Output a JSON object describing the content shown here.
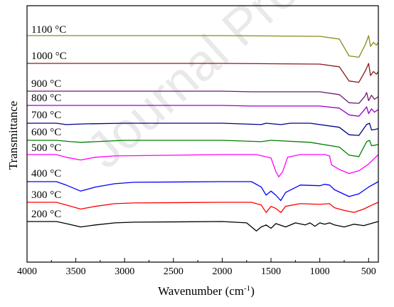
{
  "watermark": "Journal Pre",
  "chart_data": {
    "type": "line",
    "xlabel": "Wavenumber (cm",
    "xlabel_sup": "-1",
    "xlabel_close": ")",
    "ylabel": "Transmittance",
    "xlim": [
      4000,
      400
    ],
    "x_reversed": true,
    "x_ticks": [
      4000,
      3500,
      3000,
      2500,
      2000,
      1500,
      1000,
      500
    ],
    "y_ticks_shown": false,
    "grid": false,
    "legend": "inline labels at left of each curve",
    "series": [
      {
        "name": "200 °C",
        "color": "#000000",
        "points": [
          [
            4000,
            0.0
          ],
          [
            3700,
            0.0
          ],
          [
            3600,
            -0.03
          ],
          [
            3450,
            -0.08
          ],
          [
            3300,
            -0.05
          ],
          [
            3100,
            -0.02
          ],
          [
            2900,
            -0.01
          ],
          [
            2000,
            0.0
          ],
          [
            1750,
            -0.02
          ],
          [
            1650,
            -0.14
          ],
          [
            1600,
            -0.08
          ],
          [
            1550,
            -0.05
          ],
          [
            1500,
            -0.1
          ],
          [
            1450,
            -0.03
          ],
          [
            1350,
            -0.08
          ],
          [
            1250,
            -0.02
          ],
          [
            1150,
            -0.05
          ],
          [
            1100,
            -0.02
          ],
          [
            1050,
            -0.07
          ],
          [
            1000,
            -0.02
          ],
          [
            950,
            -0.04
          ],
          [
            900,
            -0.02
          ],
          [
            850,
            -0.05
          ],
          [
            750,
            -0.08
          ],
          [
            650,
            -0.04
          ],
          [
            550,
            -0.06
          ],
          [
            450,
            -0.02
          ],
          [
            400,
            0.0
          ]
        ]
      },
      {
        "name": "300 °C",
        "color": "#ff0000",
        "points": [
          [
            4000,
            0.0
          ],
          [
            3700,
            0.0
          ],
          [
            3600,
            -0.04
          ],
          [
            3450,
            -0.1
          ],
          [
            3300,
            -0.06
          ],
          [
            3100,
            -0.02
          ],
          [
            2900,
            -0.01
          ],
          [
            2000,
            0.0
          ],
          [
            1700,
            0.0
          ],
          [
            1600,
            -0.04
          ],
          [
            1550,
            -0.15
          ],
          [
            1500,
            -0.06
          ],
          [
            1450,
            -0.09
          ],
          [
            1400,
            -0.15
          ],
          [
            1350,
            -0.06
          ],
          [
            1200,
            -0.02
          ],
          [
            1000,
            -0.03
          ],
          [
            900,
            -0.02
          ],
          [
            850,
            -0.08
          ],
          [
            750,
            -0.12
          ],
          [
            650,
            -0.15
          ],
          [
            550,
            -0.1
          ],
          [
            450,
            -0.03
          ],
          [
            400,
            0.0
          ]
        ]
      },
      {
        "name": "400 °C",
        "color": "#0000ff",
        "points": [
          [
            4000,
            0.0
          ],
          [
            3700,
            0.0
          ],
          [
            3600,
            -0.05
          ],
          [
            3450,
            -0.14
          ],
          [
            3300,
            -0.08
          ],
          [
            3100,
            -0.03
          ],
          [
            2900,
            -0.01
          ],
          [
            2000,
            0.0
          ],
          [
            1700,
            0.0
          ],
          [
            1600,
            -0.08
          ],
          [
            1550,
            -0.2
          ],
          [
            1500,
            -0.14
          ],
          [
            1450,
            -0.2
          ],
          [
            1400,
            -0.28
          ],
          [
            1350,
            -0.16
          ],
          [
            1200,
            -0.05
          ],
          [
            1000,
            -0.06
          ],
          [
            950,
            -0.04
          ],
          [
            900,
            -0.05
          ],
          [
            850,
            -0.12
          ],
          [
            700,
            -0.22
          ],
          [
            600,
            -0.18
          ],
          [
            500,
            -0.08
          ],
          [
            400,
            0.0
          ]
        ]
      },
      {
        "name": "500 °C",
        "color": "#ff00ff",
        "points": [
          [
            4000,
            0.0
          ],
          [
            3700,
            0.0
          ],
          [
            3600,
            -0.04
          ],
          [
            3450,
            -0.08
          ],
          [
            3300,
            -0.04
          ],
          [
            3100,
            -0.02
          ],
          [
            2000,
            0.0
          ],
          [
            1650,
            0.0
          ],
          [
            1500,
            -0.05
          ],
          [
            1450,
            -0.25
          ],
          [
            1420,
            -0.33
          ],
          [
            1380,
            -0.25
          ],
          [
            1330,
            -0.04
          ],
          [
            1200,
            0.0
          ],
          [
            950,
            0.0
          ],
          [
            900,
            -0.02
          ],
          [
            880,
            -0.15
          ],
          [
            800,
            -0.22
          ],
          [
            700,
            -0.28
          ],
          [
            600,
            -0.24
          ],
          [
            500,
            -0.14
          ],
          [
            400,
            0.0
          ]
        ]
      },
      {
        "name": "600 °C",
        "color": "#008000",
        "points": [
          [
            4000,
            0.0
          ],
          [
            3700,
            0.0
          ],
          [
            3550,
            -0.02
          ],
          [
            3450,
            -0.03
          ],
          [
            3300,
            -0.02
          ],
          [
            3000,
            0.0
          ],
          [
            2000,
            0.0
          ],
          [
            1600,
            -0.02
          ],
          [
            1500,
            0.0
          ],
          [
            1100,
            -0.03
          ],
          [
            800,
            -0.1
          ],
          [
            700,
            -0.22
          ],
          [
            600,
            -0.24
          ],
          [
            520,
            -0.02
          ],
          [
            490,
            0.0
          ],
          [
            470,
            -0.08
          ],
          [
            430,
            -0.07
          ],
          [
            400,
            -0.06
          ]
        ]
      },
      {
        "name": "700 °C",
        "color": "#00008b",
        "points": [
          [
            4000,
            0.0
          ],
          [
            3700,
            0.0
          ],
          [
            3600,
            -0.02
          ],
          [
            3400,
            -0.01
          ],
          [
            3000,
            0.0
          ],
          [
            2000,
            0.0
          ],
          [
            1600,
            -0.02
          ],
          [
            1550,
            0.0
          ],
          [
            1400,
            -0.02
          ],
          [
            1300,
            0.0
          ],
          [
            1100,
            0.0
          ],
          [
            800,
            -0.06
          ],
          [
            700,
            -0.17
          ],
          [
            600,
            -0.18
          ],
          [
            520,
            -0.02
          ],
          [
            490,
            0.0
          ],
          [
            470,
            -0.1
          ],
          [
            430,
            -0.09
          ],
          [
            400,
            -0.08
          ]
        ]
      },
      {
        "name": "800 °C",
        "color": "#9900cc",
        "points": [
          [
            4000,
            0.0
          ],
          [
            3700,
            0.0
          ],
          [
            2000,
            0.0
          ],
          [
            1700,
            -0.01
          ],
          [
            1000,
            -0.01
          ],
          [
            800,
            -0.04
          ],
          [
            700,
            -0.14
          ],
          [
            600,
            -0.16
          ],
          [
            540,
            -0.06
          ],
          [
            520,
            -0.02
          ],
          [
            500,
            -0.12
          ],
          [
            470,
            -0.05
          ],
          [
            440,
            -0.1
          ],
          [
            400,
            -0.06
          ]
        ]
      },
      {
        "name": "900 °C",
        "color": "#6a1b6f",
        "points": [
          [
            4000,
            0.0
          ],
          [
            3700,
            0.0
          ],
          [
            2000,
            0.0
          ],
          [
            1700,
            -0.01
          ],
          [
            1000,
            -0.01
          ],
          [
            800,
            -0.05
          ],
          [
            700,
            -0.17
          ],
          [
            600,
            -0.18
          ],
          [
            540,
            -0.08
          ],
          [
            520,
            -0.02
          ],
          [
            500,
            -0.14
          ],
          [
            470,
            -0.06
          ],
          [
            440,
            -0.12
          ],
          [
            400,
            -0.08
          ]
        ]
      },
      {
        "name": "1000 °C",
        "color": "#8b1a1a",
        "points": [
          [
            4000,
            0.0
          ],
          [
            3700,
            0.0
          ],
          [
            2000,
            0.0
          ],
          [
            1000,
            -0.01
          ],
          [
            800,
            -0.05
          ],
          [
            700,
            -0.26
          ],
          [
            600,
            -0.28
          ],
          [
            530,
            -0.1
          ],
          [
            500,
            0.0
          ],
          [
            480,
            -0.18
          ],
          [
            450,
            -0.12
          ],
          [
            420,
            -0.16
          ],
          [
            400,
            -0.12
          ]
        ]
      },
      {
        "name": "1100 °C",
        "color": "#8b8b1a",
        "points": [
          [
            4000,
            0.0
          ],
          [
            3700,
            0.0
          ],
          [
            2000,
            0.0
          ],
          [
            1000,
            -0.01
          ],
          [
            800,
            -0.05
          ],
          [
            700,
            -0.3
          ],
          [
            600,
            -0.32
          ],
          [
            530,
            -0.12
          ],
          [
            500,
            0.0
          ],
          [
            480,
            -0.16
          ],
          [
            450,
            -0.1
          ],
          [
            420,
            -0.14
          ],
          [
            400,
            -0.1
          ]
        ]
      }
    ]
  }
}
